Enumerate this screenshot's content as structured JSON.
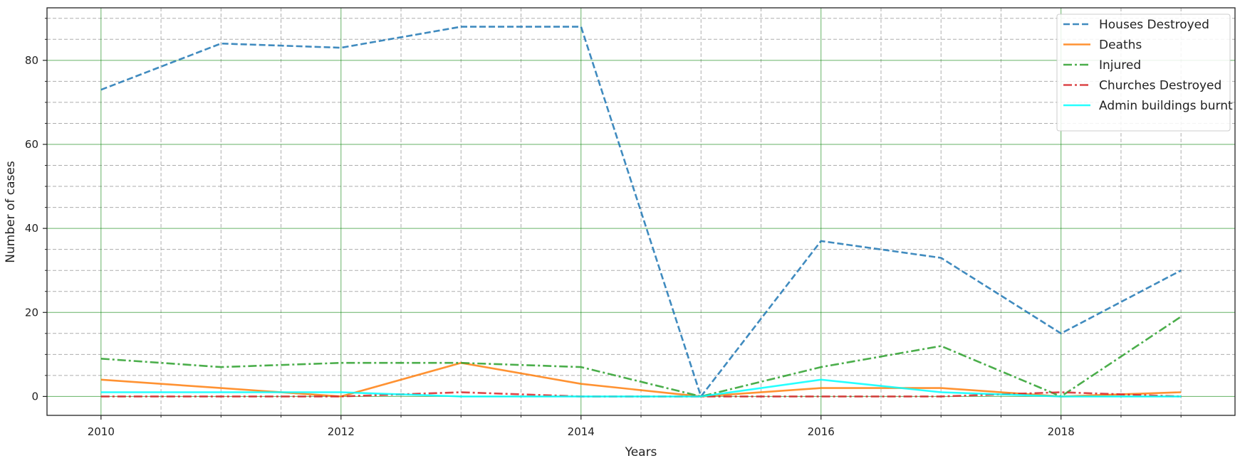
{
  "chart_data": {
    "type": "line",
    "title": "",
    "xlabel": "Years",
    "ylabel": "Number of cases",
    "x": [
      2010,
      2011,
      2012,
      2013,
      2014,
      2015,
      2016,
      2017,
      2018,
      2019
    ],
    "xlim": [
      2009.55,
      2019.45
    ],
    "ylim": [
      -4.5,
      92.5
    ],
    "x_major_ticks": [
      2010,
      2012,
      2014,
      2016,
      2018
    ],
    "x_tick_labels": [
      "2010",
      "2012",
      "2014",
      "2016",
      "2018"
    ],
    "x_minor_ticks": [
      2010.5,
      2011,
      2011.5,
      2012.5,
      2013,
      2013.5,
      2014.5,
      2015,
      2015.5,
      2016.5,
      2017,
      2017.5,
      2018.5,
      2019
    ],
    "y_major_ticks": [
      0,
      20,
      40,
      60,
      80
    ],
    "y_tick_labels": [
      "0",
      "20",
      "40",
      "60",
      "80"
    ],
    "y_minor_ticks": [
      -5,
      5,
      10,
      15,
      25,
      30,
      35,
      45,
      50,
      55,
      65,
      70,
      75,
      85,
      90
    ],
    "grid": true,
    "major_grid_color": "#008000",
    "minor_grid_color": "#999999",
    "legend_position": "top-right",
    "series": [
      {
        "name": "Houses Destroyed",
        "values": [
          73,
          84,
          83,
          88,
          88,
          0,
          37,
          33,
          15,
          30
        ],
        "color": "#1f77b4",
        "style": "dashed"
      },
      {
        "name": "Deaths",
        "values": [
          4,
          2,
          0,
          8,
          3,
          0,
          2,
          2,
          0,
          1
        ],
        "color": "#ff7f0e",
        "style": "solid"
      },
      {
        "name": "Injured",
        "values": [
          9,
          7,
          8,
          8,
          7,
          0,
          7,
          12,
          0,
          19
        ],
        "color": "#2ca02c",
        "style": "dashdot"
      },
      {
        "name": "Churches Destroyed",
        "values": [
          0,
          0,
          0,
          1,
          0,
          0,
          0,
          0,
          1,
          0
        ],
        "color": "#d62728",
        "style": "dashdot"
      },
      {
        "name": "Admin buildings burnt",
        "values": [
          1,
          1,
          1,
          0,
          0,
          0,
          4,
          1,
          0,
          0
        ],
        "color": "#00ffff",
        "style": "solid"
      }
    ]
  }
}
